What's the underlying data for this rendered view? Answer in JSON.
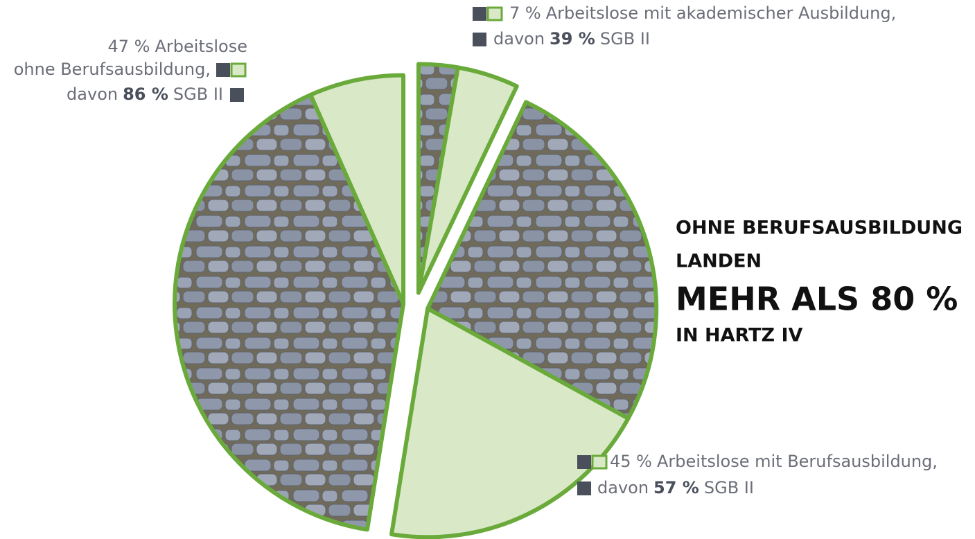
{
  "chart_data": {
    "type": "pie",
    "categories": [
      [
        "Arbeitslose mit akademischer Ausbildung,"
      ],
      [
        "Arbeitslose mit Berufsausbildung,"
      ],
      [
        "Arbeitslose",
        "ohne Berufsausbildung,"
      ]
    ],
    "values": [
      7,
      45,
      47
    ],
    "value_labels": [
      "7 %",
      "45 %",
      "47 %"
    ],
    "sub_values": [
      39,
      57,
      86
    ],
    "sub_value_labels": [
      "39 %",
      "57 %",
      "86 %"
    ],
    "sub_prefix": "davon",
    "sub_name": "SGB II",
    "color": "#d9e8c6",
    "sub_color": "#4a4f5c",
    "edge_color": "#6aaa3a",
    "headline": [
      "OHNE BERUFSAUSBILDUNG",
      "LANDEN",
      "MEHR ALS 80 %",
      "IN HARTZ IV"
    ]
  }
}
